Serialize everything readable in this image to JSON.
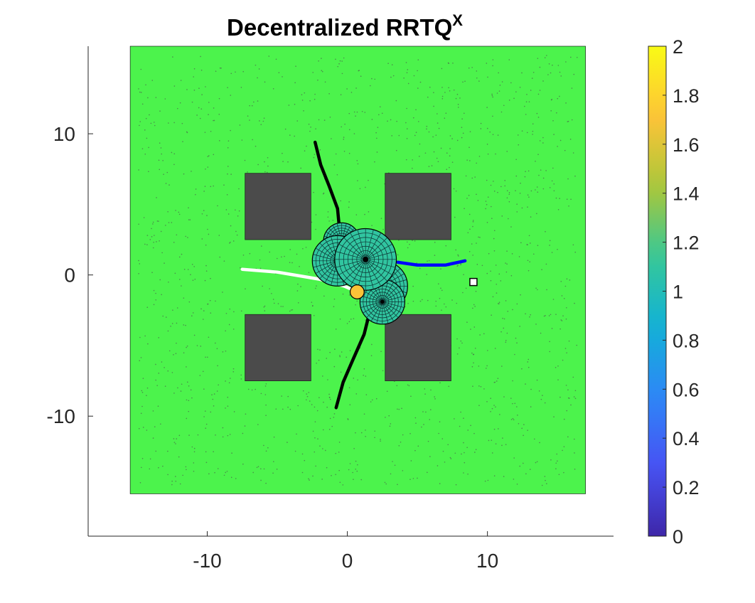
{
  "chart_data": {
    "type": "scatter",
    "title": "Decentralized RRTQ",
    "title_superscript": "X",
    "xlim": [
      -18.5,
      19
    ],
    "ylim": [
      -18.5,
      16.2
    ],
    "x_ticks": [
      -10,
      0,
      10
    ],
    "y_ticks": [
      -10,
      0,
      10
    ],
    "grid": false,
    "environment": {
      "x": [
        -15.5,
        17
      ],
      "y": [
        -15.5,
        16.2
      ],
      "color": "#4cf34c"
    },
    "obstacles": [
      {
        "x": [
          -7.3,
          -2.6
        ],
        "y": [
          2.5,
          7.2
        ]
      },
      {
        "x": [
          2.7,
          7.4
        ],
        "y": [
          2.5,
          7.2
        ]
      },
      {
        "x": [
          -7.3,
          -2.6
        ],
        "y": [
          -7.5,
          -2.8
        ]
      },
      {
        "x": [
          2.7,
          7.4
        ],
        "y": [
          -7.5,
          -2.8
        ]
      }
    ],
    "paths": [
      {
        "color": "#000000",
        "points": [
          [
            -2.3,
            9.4
          ],
          [
            -1.9,
            7.8
          ],
          [
            -1.3,
            6.3
          ],
          [
            -0.7,
            4.7
          ],
          [
            -0.5,
            2.6
          ]
        ]
      },
      {
        "color": "#000000",
        "points": [
          [
            1.6,
            -2.6
          ],
          [
            1.2,
            -4.2
          ],
          [
            0.4,
            -6.0
          ],
          [
            -0.3,
            -7.6
          ],
          [
            -0.8,
            -9.4
          ]
        ]
      },
      {
        "color": "#ffffff",
        "points": [
          [
            -7.5,
            0.4
          ],
          [
            -5.0,
            0.2
          ],
          [
            -2.0,
            -0.3
          ],
          [
            -0.2,
            -0.8
          ],
          [
            0.5,
            -1.1
          ]
        ]
      },
      {
        "color": "#0000ff",
        "points": [
          [
            3.6,
            0.9
          ],
          [
            5.0,
            0.7
          ],
          [
            7.0,
            0.7
          ],
          [
            8.4,
            1.0
          ]
        ]
      }
    ],
    "spheres": [
      {
        "cx": -0.4,
        "cy": 2.4,
        "r": 1.3,
        "value": 1.1
      },
      {
        "cx": -0.7,
        "cy": 1.0,
        "r": 1.8,
        "value": 1.1
      },
      {
        "cx": 2.5,
        "cy": -0.8,
        "r": 1.8,
        "value": 1.1
      },
      {
        "cx": 2.5,
        "cy": -1.9,
        "r": 1.6,
        "value": 1.1
      },
      {
        "cx": 1.3,
        "cy": 1.1,
        "r": 2.2,
        "value": 1.1
      }
    ],
    "agent": {
      "cx": 0.7,
      "cy": -1.2,
      "r": 0.5,
      "value": 1.7
    },
    "goal": {
      "x": 9.0,
      "y": -0.5
    },
    "colorbar": {
      "min": 0,
      "max": 2,
      "ticks": [
        "0",
        "0.2",
        "0.4",
        "0.6",
        "0.8",
        "1",
        "1.2",
        "1.4",
        "1.6",
        "1.8",
        "2"
      ],
      "colormap": "parula"
    }
  }
}
